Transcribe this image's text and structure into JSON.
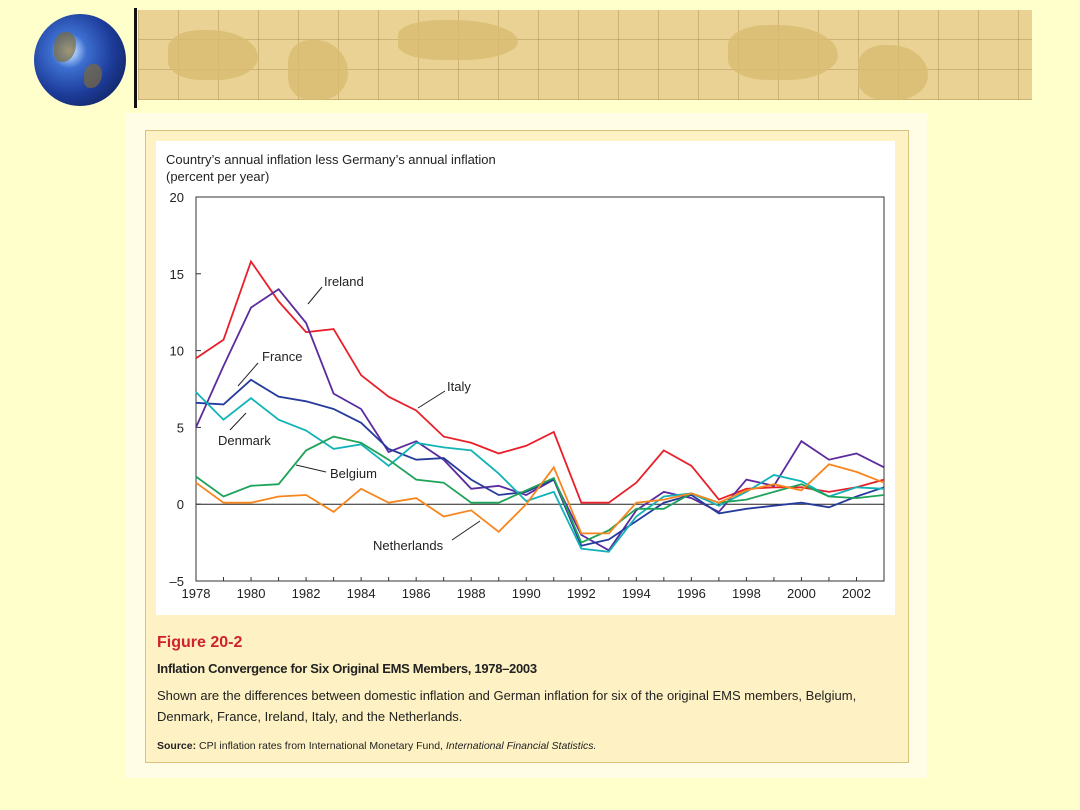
{
  "caption": {
    "figure_number": "Figure 20-2",
    "title": "Inflation Convergence for Six Original EMS Members, 1978–2003",
    "description": "Shown are the differences between domestic inflation and German inflation for six of the original EMS members, Belgium, Denmark, France, Ireland, Italy, and the Netherlands.",
    "source_label": "Source:",
    "source_text": "CPI inflation rates from International Monetary Fund, ",
    "source_publication": "International Financial Statistics."
  },
  "chart_data": {
    "type": "line",
    "ylabel_line1": "Country’s annual inflation less Germany’s annual inflation",
    "ylabel_line2": "(percent per year)",
    "xlim": [
      1978,
      2003
    ],
    "ylim": [
      -5,
      20
    ],
    "x_ticks": [
      "1978",
      "1980",
      "1982",
      "1984",
      "1986",
      "1988",
      "1990",
      "1992",
      "1994",
      "1996",
      "1998",
      "2000",
      "2002"
    ],
    "y_ticks": [
      "20",
      "15",
      "10",
      "5",
      "0",
      "–5"
    ],
    "grid": false,
    "zero_line": true,
    "x": [
      1978,
      1979,
      1980,
      1981,
      1982,
      1983,
      1984,
      1985,
      1986,
      1987,
      1988,
      1989,
      1990,
      1991,
      1992,
      1993,
      1994,
      1995,
      1996,
      1997,
      1998,
      1999,
      2000,
      2001,
      2002,
      2003
    ],
    "series": [
      {
        "name": "Italy",
        "color": "#E8202A",
        "values": [
          9.5,
          10.7,
          15.8,
          13.2,
          11.2,
          11.4,
          8.4,
          7.0,
          6.1,
          4.4,
          4.0,
          3.3,
          3.8,
          4.7,
          0.1,
          0.1,
          1.4,
          3.5,
          2.5,
          0.3,
          1.0,
          1.1,
          1.1,
          0.8,
          1.1,
          1.6
        ]
      },
      {
        "name": "Ireland",
        "color": "#5B2C9E",
        "values": [
          5.0,
          9.0,
          12.8,
          14.0,
          11.8,
          7.2,
          6.2,
          3.4,
          4.1,
          2.9,
          1.0,
          1.2,
          0.6,
          1.6,
          -2.0,
          -3.0,
          -0.4,
          0.8,
          0.4,
          -0.5,
          1.6,
          1.2,
          4.1,
          2.9,
          3.3,
          2.4
        ]
      },
      {
        "name": "France",
        "color": "#263C9C",
        "values": [
          6.6,
          6.5,
          8.1,
          7.0,
          6.7,
          6.2,
          5.3,
          3.6,
          2.9,
          3.0,
          1.6,
          0.6,
          0.8,
          1.6,
          -2.7,
          -2.3,
          -1.1,
          0.1,
          0.6,
          -0.6,
          -0.3,
          -0.1,
          0.1,
          -0.2,
          0.5,
          1.1
        ]
      },
      {
        "name": "Denmark",
        "color": "#12B3B8",
        "values": [
          7.3,
          5.5,
          6.9,
          5.5,
          4.8,
          3.6,
          3.9,
          2.5,
          4.0,
          3.7,
          3.5,
          2.0,
          0.2,
          0.8,
          -2.9,
          -3.1,
          -0.8,
          0.5,
          0.7,
          -0.1,
          0.8,
          1.9,
          1.5,
          0.5,
          1.1,
          1.0
        ]
      },
      {
        "name": "Belgium",
        "color": "#1FA35A",
        "values": [
          1.8,
          0.5,
          1.2,
          1.3,
          3.5,
          4.4,
          4.0,
          2.9,
          1.6,
          1.4,
          0.1,
          0.1,
          0.9,
          1.7,
          -2.5,
          -1.7,
          -0.3,
          -0.3,
          0.7,
          0.1,
          0.3,
          0.8,
          1.3,
          0.5,
          0.4,
          0.6
        ]
      },
      {
        "name": "Netherlands",
        "color": "#F7861E",
        "values": [
          1.4,
          0.1,
          0.1,
          0.5,
          0.6,
          -0.5,
          1.0,
          0.1,
          0.4,
          -0.8,
          -0.4,
          -1.8,
          0.0,
          2.4,
          -1.9,
          -1.9,
          0.1,
          0.3,
          0.7,
          0.1,
          0.9,
          1.3,
          0.9,
          2.6,
          2.1,
          1.4
        ]
      }
    ]
  }
}
